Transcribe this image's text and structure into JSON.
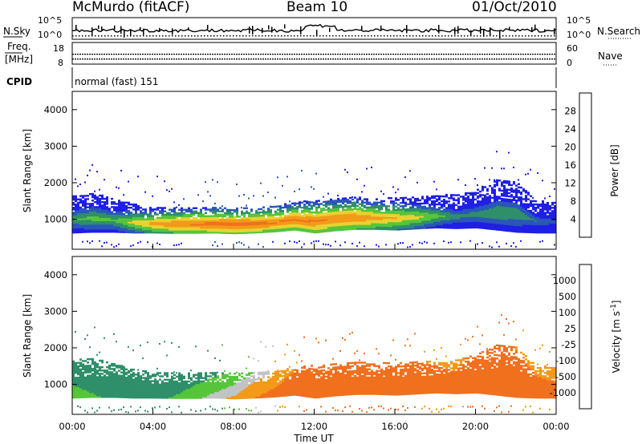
{
  "header": {
    "station": "McMurdo (fitACF)",
    "beam": "Beam 10",
    "date": "01/Oct/2010"
  },
  "noise_panel": {
    "left_label": "N.Sky",
    "right_label": "N.Search",
    "left_top_tick": "10^5",
    "left_bottom_tick": "10^0",
    "right_top_tick": "10^5",
    "right_bottom_tick": "10^0"
  },
  "freq_panel": {
    "left_label_line1": "Freq.",
    "left_label_line2": "[MHz]",
    "left_ticks": [
      "18",
      "8"
    ],
    "right_label": "Nave",
    "right_ticks": [
      "60",
      "0"
    ]
  },
  "cpid_panel": {
    "label": "CPID",
    "value": "normal (fast) 151"
  },
  "colors": {
    "power_scale": [
      "#1f1fe6",
      "#2a56b8",
      "#2e8f6a",
      "#56c53a",
      "#e6d232",
      "#f39a18",
      "#f0701e",
      "#e8250f"
    ],
    "velocity_scale": [
      "#e8250f",
      "#f0701e",
      "#f39a18",
      "#c3c3c3",
      "#56c53a",
      "#2e8f6a",
      "#2a56b8"
    ]
  },
  "chart_data": [
    {
      "type": "heatmap",
      "name": "power",
      "ylabel": "Slant Range [km]",
      "yticks": [
        "1000",
        "2000",
        "3000",
        "4000"
      ],
      "ylim": [
        180,
        4500
      ],
      "colorbar_label": "Power [dB]",
      "colorbar_ticks": [
        "4",
        "8",
        "12",
        "16",
        "20",
        "24",
        "28"
      ],
      "x_hours": [
        0,
        1,
        2,
        3,
        4,
        5,
        6,
        7,
        8,
        9,
        10,
        11,
        12,
        13,
        14,
        15,
        16,
        17,
        18,
        19,
        20,
        21,
        22,
        23,
        24
      ],
      "echo_low_km": [
        620,
        640,
        640,
        620,
        620,
        610,
        610,
        620,
        600,
        620,
        650,
        700,
        620,
        680,
        720,
        720,
        700,
        730,
        760,
        740,
        760,
        700,
        640,
        620,
        620
      ],
      "echo_high_km": [
        1650,
        1700,
        1550,
        1400,
        1300,
        1300,
        1300,
        1300,
        1300,
        1300,
        1350,
        1450,
        1500,
        1550,
        1600,
        1550,
        1600,
        1600,
        1650,
        1650,
        1800,
        2050,
        2000,
        1500,
        1450
      ],
      "peak_power_db": [
        14,
        16,
        15,
        20,
        24,
        26,
        27,
        28,
        28,
        28,
        27,
        27,
        27,
        26,
        26,
        24,
        22,
        20,
        16,
        12,
        12,
        14,
        14,
        10,
        8
      ]
    },
    {
      "type": "heatmap",
      "name": "velocity",
      "ylabel": "Slant Range [km]",
      "yticks": [
        "1000",
        "2000",
        "3000",
        "4000"
      ],
      "ylim": [
        180,
        4500
      ],
      "colorbar_label": "Velocity [m s^-1]",
      "colorbar_ticks": [
        "1000",
        "500",
        "100",
        "25",
        "-25",
        "-100",
        "-500",
        "-1000"
      ],
      "x_hours": [
        0,
        1,
        2,
        3,
        4,
        5,
        6,
        7,
        8,
        9,
        10,
        11,
        12,
        13,
        14,
        15,
        16,
        17,
        18,
        19,
        20,
        21,
        22,
        23,
        24
      ],
      "echo_low_km": [
        620,
        640,
        640,
        620,
        620,
        610,
        610,
        620,
        600,
        620,
        650,
        700,
        620,
        680,
        720,
        720,
        700,
        730,
        760,
        740,
        760,
        700,
        640,
        620,
        620
      ],
      "echo_high_km": [
        1650,
        1700,
        1550,
        1400,
        1300,
        1300,
        1300,
        1300,
        1300,
        1300,
        1350,
        1450,
        1500,
        1550,
        1600,
        1550,
        1600,
        1600,
        1650,
        1650,
        1800,
        2050,
        2000,
        1500,
        1450
      ],
      "velocity_ms": [
        120,
        150,
        180,
        200,
        180,
        150,
        100,
        60,
        20,
        -40,
        -80,
        -150,
        -180,
        -200,
        -220,
        -200,
        -180,
        -160,
        -140,
        -120,
        -200,
        -300,
        -150,
        -120,
        -100
      ]
    }
  ],
  "xaxis": {
    "ticks": [
      "00:00",
      "04:00",
      "08:00",
      "12:00",
      "16:00",
      "20:00",
      "00:00"
    ],
    "label": "Time UT"
  }
}
